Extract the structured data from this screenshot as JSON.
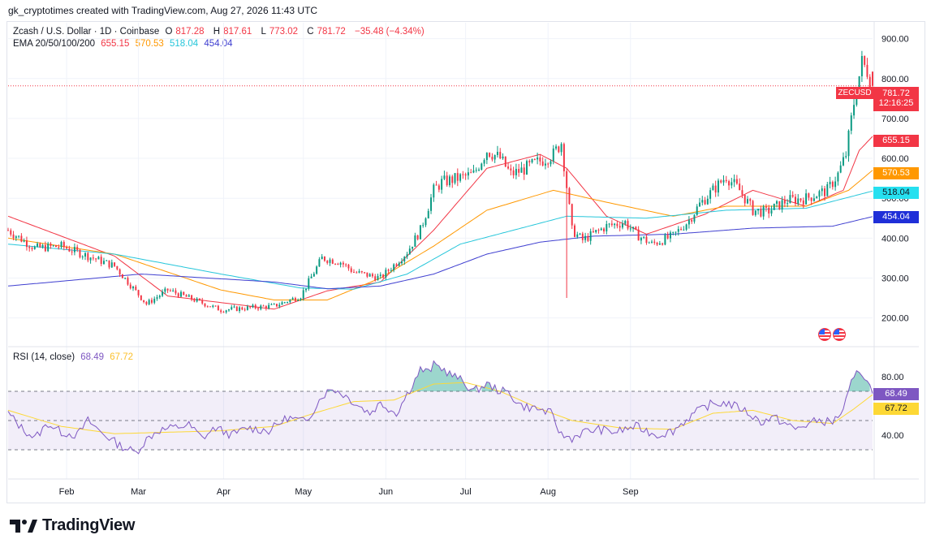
{
  "caption": "gk_cryptotimes created with TradingView.com, Aug 27, 2026 11:43 UTC",
  "legend": {
    "symbol": "Zcash / U.S. Dollar · 1D · Coinbase",
    "o_label": "O",
    "o": "817.28",
    "h_label": "H",
    "h": "817.61",
    "l_label": "L",
    "l": "773.02",
    "c_label": "C",
    "c": "781.72",
    "change": "−35.48 (−4.34%)",
    "ema_label": "EMA 20/50/100/200",
    "ema20": "655.15",
    "ema50": "570.53",
    "ema100": "518.04",
    "ema200": "454.04",
    "rsi_label": "RSI (14, close)",
    "rsi": "68.49",
    "rsi_ma": "67.72"
  },
  "price_tag": {
    "symbol": "ZECUSD",
    "value": "781.72",
    "countdown": "12:16:25"
  },
  "brand": "TradingView",
  "colors": {
    "up": "#089981",
    "down": "#f23645",
    "ema20": "#f23645",
    "ema50": "#ff9800",
    "ema100": "#26c6da",
    "ema200": "#3f3fd0",
    "rsi": "#7e57c2",
    "rsi_ma": "#fdd835"
  },
  "chart_data": [
    {
      "type": "candlestick",
      "title": "Zcash / U.S. Dollar · 1D · Coinbase",
      "x_ticks": [
        "Feb",
        "Mar",
        "Apr",
        "May",
        "Jun",
        "Jul",
        "Aug",
        "Sep"
      ],
      "y_ticks": [
        200,
        300,
        400,
        500,
        600,
        700,
        800,
        900
      ],
      "y_tick_labels": [
        "200.00",
        "300.00",
        "400.00",
        "500.00",
        "600.00",
        "700.00",
        "800.00",
        "900.00"
      ],
      "ylim": [
        130,
        940
      ],
      "close_anchors": [
        [
          0,
          420
        ],
        [
          10,
          375
        ],
        [
          20,
          380
        ],
        [
          30,
          355
        ],
        [
          40,
          330
        ],
        [
          52,
          235
        ],
        [
          60,
          270
        ],
        [
          70,
          245
        ],
        [
          80,
          220
        ],
        [
          90,
          225
        ],
        [
          100,
          230
        ],
        [
          110,
          255
        ],
        [
          118,
          350
        ],
        [
          125,
          340
        ],
        [
          130,
          315
        ],
        [
          140,
          300
        ],
        [
          150,
          365
        ],
        [
          155,
          420
        ],
        [
          160,
          520
        ],
        [
          163,
          540
        ],
        [
          175,
          560
        ],
        [
          180,
          620
        ],
        [
          185,
          600
        ],
        [
          189,
          560
        ],
        [
          193,
          570
        ],
        [
          205,
          610
        ],
        [
          208,
          640
        ],
        [
          212,
          420
        ],
        [
          216,
          395
        ],
        [
          225,
          430
        ],
        [
          232,
          440
        ],
        [
          236,
          410
        ],
        [
          242,
          385
        ],
        [
          250,
          405
        ],
        [
          256,
          445
        ],
        [
          260,
          485
        ],
        [
          270,
          555
        ],
        [
          275,
          520
        ],
        [
          280,
          470
        ],
        [
          285,
          465
        ],
        [
          293,
          495
        ],
        [
          300,
          500
        ],
        [
          308,
          520
        ],
        [
          312,
          560
        ],
        [
          315,
          610
        ],
        [
          318,
          740
        ],
        [
          321,
          840
        ],
        [
          323,
          820
        ],
        [
          325,
          782
        ]
      ],
      "spikes": [
        [
          210,
          250
        ]
      ],
      "ema_anchors": {
        "20": [
          [
            0,
            455
          ],
          [
            40,
            355
          ],
          [
            60,
            255
          ],
          [
            100,
            222
          ],
          [
            120,
            268
          ],
          [
            140,
            290
          ],
          [
            160,
            420
          ],
          [
            180,
            575
          ],
          [
            200,
            610
          ],
          [
            210,
            575
          ],
          [
            225,
            455
          ],
          [
            240,
            410
          ],
          [
            262,
            460
          ],
          [
            280,
            520
          ],
          [
            300,
            480
          ],
          [
            314,
            520
          ],
          [
            320,
            620
          ],
          [
            325,
            655
          ]
        ],
        "50": [
          [
            0,
            400
          ],
          [
            40,
            360
          ],
          [
            80,
            270
          ],
          [
            100,
            245
          ],
          [
            120,
            245
          ],
          [
            140,
            300
          ],
          [
            160,
            380
          ],
          [
            180,
            470
          ],
          [
            205,
            520
          ],
          [
            225,
            490
          ],
          [
            250,
            455
          ],
          [
            270,
            480
          ],
          [
            300,
            480
          ],
          [
            316,
            520
          ],
          [
            325,
            570
          ]
        ],
        "100": [
          [
            0,
            385
          ],
          [
            40,
            360
          ],
          [
            80,
            310
          ],
          [
            110,
            275
          ],
          [
            130,
            272
          ],
          [
            150,
            310
          ],
          [
            170,
            385
          ],
          [
            190,
            420
          ],
          [
            210,
            455
          ],
          [
            240,
            450
          ],
          [
            270,
            470
          ],
          [
            300,
            475
          ],
          [
            325,
            518
          ]
        ],
        "200": [
          [
            0,
            280
          ],
          [
            50,
            310
          ],
          [
            100,
            290
          ],
          [
            120,
            273
          ],
          [
            140,
            280
          ],
          [
            160,
            310
          ],
          [
            180,
            360
          ],
          [
            200,
            390
          ],
          [
            220,
            405
          ],
          [
            250,
            410
          ],
          [
            280,
            425
          ],
          [
            310,
            430
          ],
          [
            325,
            454
          ]
        ]
      }
    },
    {
      "type": "line",
      "title": "RSI (14, close)",
      "y_ticks": [
        40,
        80
      ],
      "y_tick_labels": [
        "40.00",
        "80.00"
      ],
      "ylim": [
        10,
        100
      ],
      "bands": {
        "upper": 70,
        "middle": 50,
        "lower": 30
      },
      "rsi_anchors": [
        [
          0,
          55
        ],
        [
          5,
          45
        ],
        [
          10,
          38
        ],
        [
          15,
          48
        ],
        [
          20,
          42
        ],
        [
          26,
          40
        ],
        [
          30,
          50
        ],
        [
          35,
          42
        ],
        [
          42,
          33
        ],
        [
          48,
          28
        ],
        [
          52,
          37
        ],
        [
          56,
          43
        ],
        [
          62,
          45
        ],
        [
          68,
          47
        ],
        [
          73,
          38
        ],
        [
          78,
          45
        ],
        [
          84,
          40
        ],
        [
          90,
          45
        ],
        [
          98,
          43
        ],
        [
          105,
          52
        ],
        [
          112,
          49
        ],
        [
          118,
          67
        ],
        [
          122,
          72
        ],
        [
          126,
          68
        ],
        [
          132,
          60
        ],
        [
          136,
          55
        ],
        [
          140,
          62
        ],
        [
          146,
          55
        ],
        [
          150,
          68
        ],
        [
          153,
          78
        ],
        [
          155,
          85
        ],
        [
          158,
          83
        ],
        [
          160,
          88
        ],
        [
          163,
          86
        ],
        [
          166,
          82
        ],
        [
          170,
          78
        ],
        [
          175,
          70
        ],
        [
          180,
          75
        ],
        [
          184,
          71
        ],
        [
          188,
          69
        ],
        [
          193,
          60
        ],
        [
          199,
          58
        ],
        [
          204,
          55
        ],
        [
          208,
          40
        ],
        [
          212,
          38
        ],
        [
          216,
          42
        ],
        [
          222,
          44
        ],
        [
          228,
          42
        ],
        [
          236,
          46
        ],
        [
          244,
          40
        ],
        [
          250,
          43
        ],
        [
          258,
          55
        ],
        [
          264,
          61
        ],
        [
          270,
          62
        ],
        [
          276,
          58
        ],
        [
          283,
          49
        ],
        [
          288,
          52
        ],
        [
          296,
          44
        ],
        [
          304,
          50
        ],
        [
          310,
          49
        ],
        [
          314,
          57
        ],
        [
          317,
          75
        ],
        [
          320,
          85
        ],
        [
          322,
          80
        ],
        [
          324,
          73
        ],
        [
          325,
          68.5
        ]
      ],
      "rsi_ma_anchors": [
        [
          0,
          57
        ],
        [
          20,
          46
        ],
        [
          40,
          41
        ],
        [
          60,
          42
        ],
        [
          80,
          43
        ],
        [
          100,
          46
        ],
        [
          115,
          55
        ],
        [
          130,
          63
        ],
        [
          145,
          64
        ],
        [
          160,
          75
        ],
        [
          172,
          76
        ],
        [
          185,
          70
        ],
        [
          200,
          58
        ],
        [
          212,
          50
        ],
        [
          230,
          45
        ],
        [
          250,
          44
        ],
        [
          265,
          55
        ],
        [
          280,
          57
        ],
        [
          295,
          50
        ],
        [
          310,
          48
        ],
        [
          318,
          58
        ],
        [
          325,
          67.7
        ]
      ]
    }
  ]
}
